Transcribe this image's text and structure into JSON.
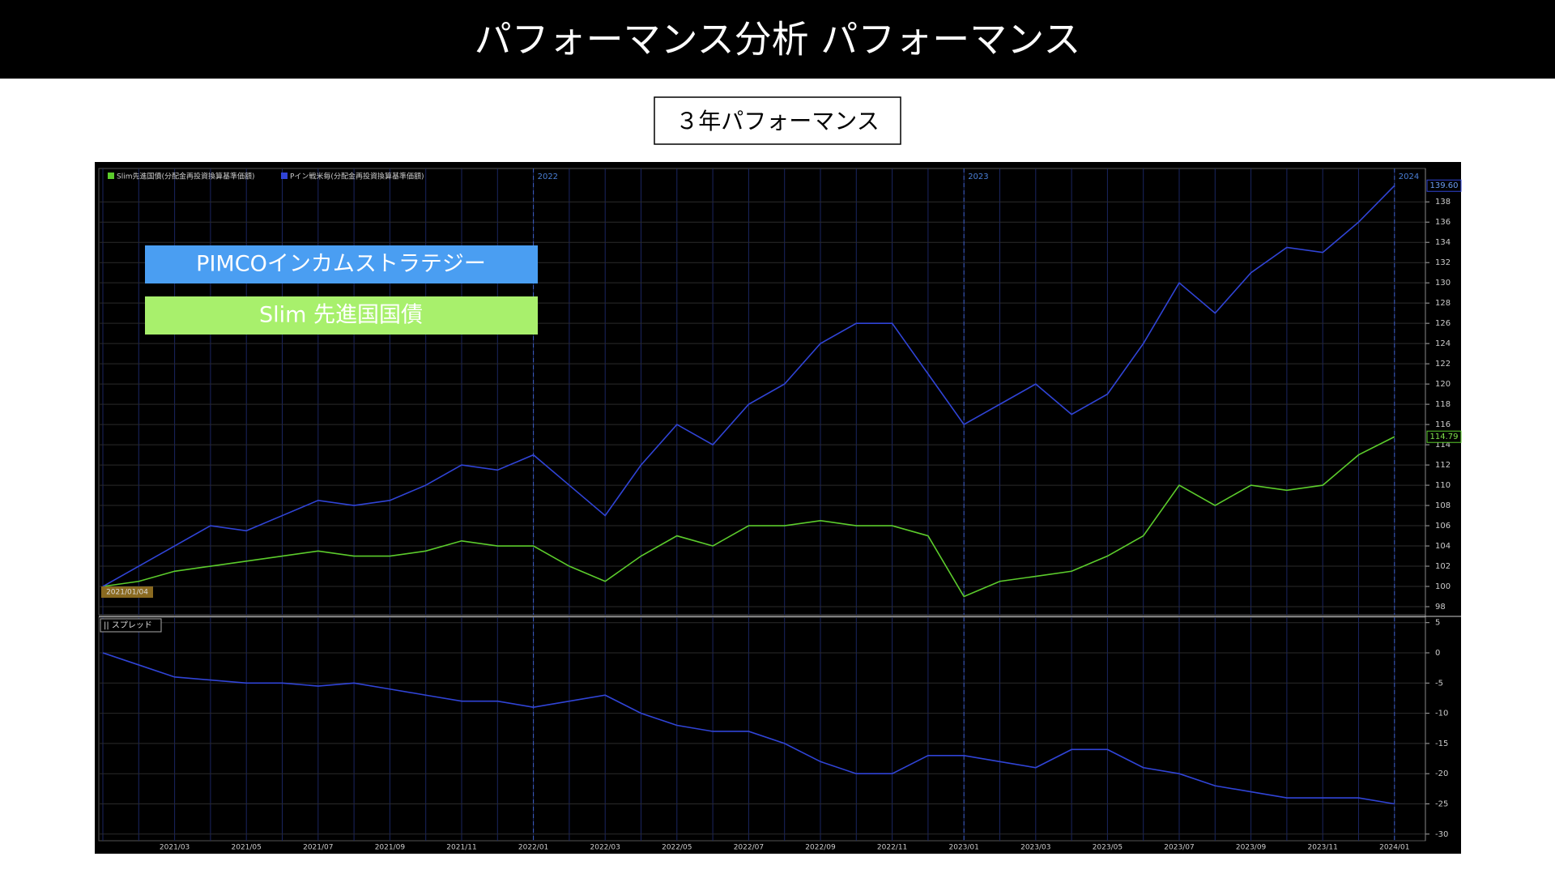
{
  "header": {
    "title": "パフォーマンス分析 パフォーマンス"
  },
  "subtitle": "３年パフォーマンス",
  "overlay_labels": [
    {
      "text": "PIMCOインカムストラテジー",
      "color": "#4a9ef2"
    },
    {
      "text": "Slim 先進国国債",
      "color": "#a8f06c"
    }
  ],
  "chart_data": [
    {
      "type": "line",
      "start_label": "2021/01/04",
      "x": [
        "2021/01",
        "2021/02",
        "2021/03",
        "2021/04",
        "2021/05",
        "2021/06",
        "2021/07",
        "2021/08",
        "2021/09",
        "2021/10",
        "2021/11",
        "2021/12",
        "2022/01",
        "2022/02",
        "2022/03",
        "2022/04",
        "2022/05",
        "2022/06",
        "2022/07",
        "2022/08",
        "2022/09",
        "2022/10",
        "2022/11",
        "2022/12",
        "2023/01",
        "2023/02",
        "2023/03",
        "2023/04",
        "2023/05",
        "2023/06",
        "2023/07",
        "2023/08",
        "2023/09",
        "2023/10",
        "2023/11",
        "2023/12",
        "2024/01"
      ],
      "xticks": [
        "2021/03",
        "2021/05",
        "2021/07",
        "2021/09",
        "2021/11",
        "2022/01",
        "2022/03",
        "2022/05",
        "2022/07",
        "2022/09",
        "2022/11",
        "2023/01",
        "2023/03",
        "2023/05",
        "2023/07",
        "2023/09",
        "2023/11",
        "2024/01"
      ],
      "year_markers": [
        {
          "value": "2022/01",
          "label": "2022"
        },
        {
          "value": "2023/01",
          "label": "2023"
        },
        {
          "value": "2024/01",
          "label": "2024"
        }
      ],
      "series": [
        {
          "name": "Slim先進国債(分配金再投資換算基準価額)",
          "color": "#5ccc2c",
          "end_label": "114.79",
          "values": [
            100,
            100.5,
            101.5,
            102,
            102.5,
            103,
            103.5,
            103,
            103,
            103.5,
            104.5,
            104,
            104,
            102,
            100.5,
            103,
            105,
            104,
            106,
            106,
            106.5,
            106,
            106,
            105,
            99,
            100.5,
            101,
            101.5,
            103,
            105,
            110,
            108,
            110,
            109.5,
            110,
            113,
            114.79
          ]
        },
        {
          "name": "Pイン戦米毎(分配金再投資換算基準価額)",
          "color": "#3044d6",
          "end_label": "139.60",
          "values": [
            100,
            102,
            104,
            106,
            105.5,
            107,
            108.5,
            108,
            108.5,
            110,
            112,
            111.5,
            113,
            110,
            107,
            112,
            116,
            114,
            118,
            120,
            124,
            126,
            126,
            121,
            116,
            118,
            120,
            117,
            119,
            124,
            130,
            127,
            131,
            133.5,
            133,
            136,
            139.6
          ]
        }
      ],
      "ylim": [
        97.2,
        141.3
      ],
      "yticks": [
        98,
        100,
        102,
        104,
        106,
        108,
        110,
        112,
        114,
        116,
        118,
        120,
        122,
        124,
        126,
        128,
        130,
        132,
        134,
        136,
        138
      ]
    },
    {
      "type": "line",
      "panel_label": "|| スプレッド",
      "series": [
        {
          "name": "スプレッド",
          "color": "#3044d6",
          "values": [
            0,
            -2,
            -4,
            -4.5,
            -5,
            -5,
            -5.5,
            -5,
            -6,
            -7,
            -8,
            -8,
            -9,
            -8,
            -7,
            -10,
            -12,
            -13,
            -13,
            -15,
            -18,
            -20,
            -20,
            -17,
            -17,
            -18,
            -19,
            -16,
            -16,
            -19,
            -20,
            -22,
            -23,
            -24,
            -24,
            -24,
            -25
          ]
        }
      ],
      "ylim": [
        -31.1,
        5.9
      ],
      "yticks": [
        5,
        0,
        -5,
        -10,
        -15,
        -20,
        -25,
        -30
      ]
    }
  ]
}
